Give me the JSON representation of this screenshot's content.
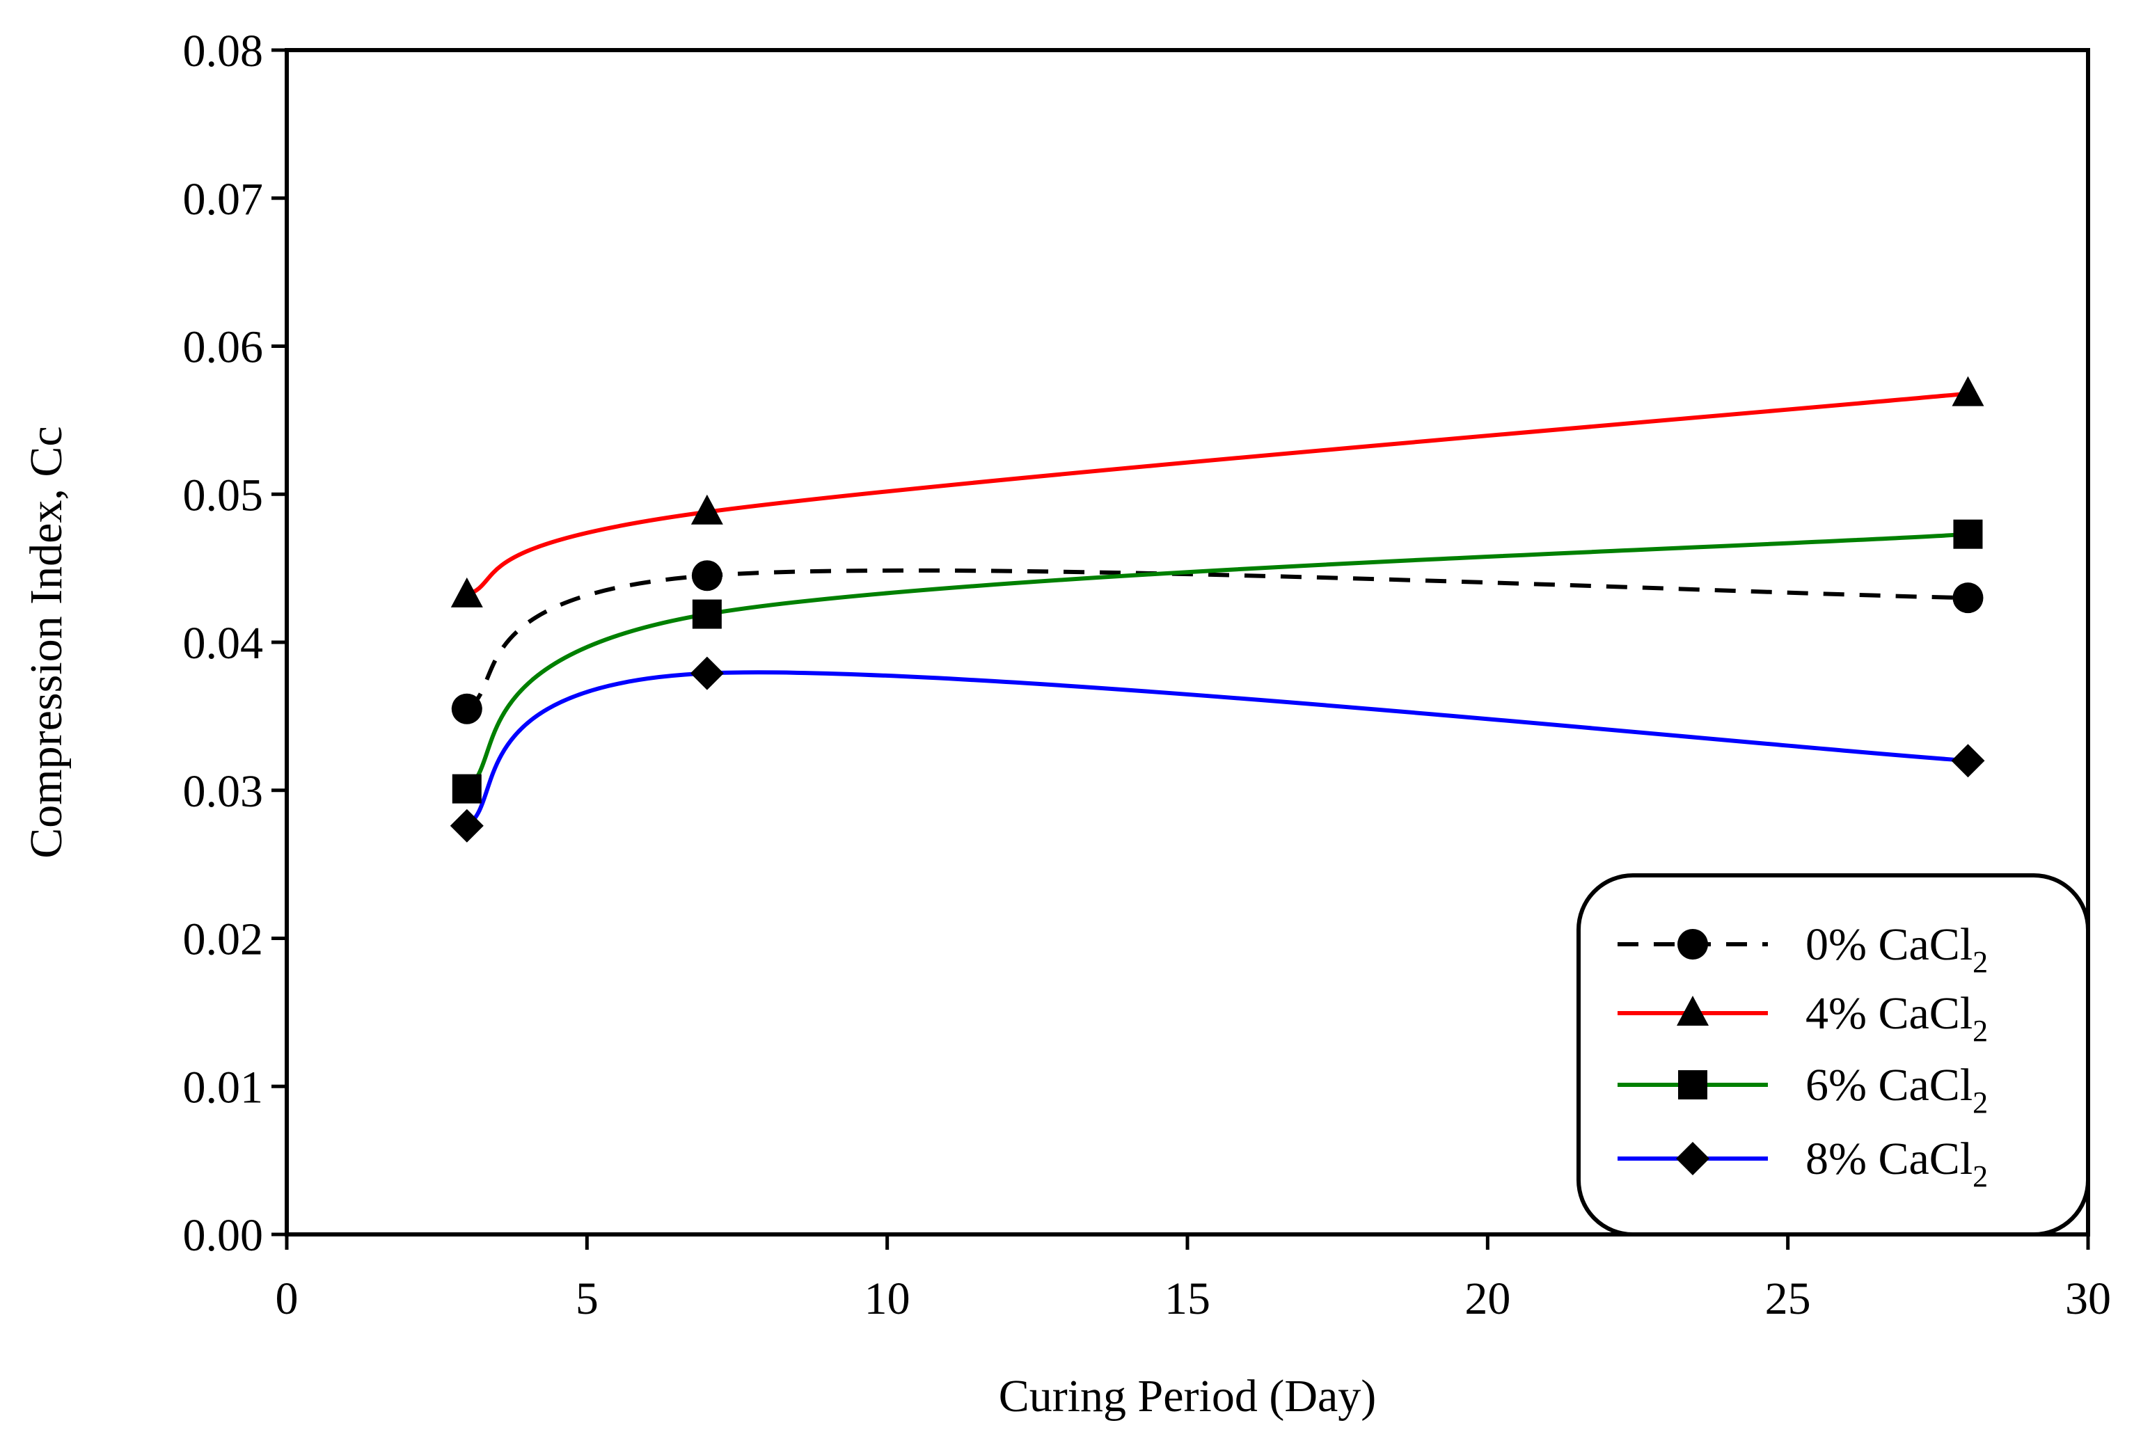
{
  "chart_data": {
    "type": "line",
    "title": "",
    "xlabel": "Curing Period (Day)",
    "ylabel": "Compression Index,  Cc",
    "xlim": [
      0,
      30
    ],
    "ylim": [
      0,
      0.08
    ],
    "xticks": [
      0,
      5,
      10,
      15,
      20,
      25,
      30
    ],
    "yticks": [
      0,
      0.01,
      0.02,
      0.03,
      0.04,
      0.05,
      0.06,
      0.07,
      0.08
    ],
    "xtick_labels": [
      "0",
      "5",
      "10",
      "15",
      "20",
      "25",
      "30"
    ],
    "ytick_labels": [
      "0.00",
      "0.01",
      "0.02",
      "0.03",
      "0.04",
      "0.05",
      "0.06",
      "0.07",
      "0.08"
    ],
    "grid": false,
    "legend_position": "bottom-right",
    "x": [
      3,
      7,
      28
    ],
    "series": [
      {
        "name": "0% CaCl2",
        "label_main": "0% CaCl",
        "label_sub": "2",
        "values": [
          0.0355,
          0.0445,
          0.043
        ],
        "color": "#000000",
        "dashed": true,
        "marker": "circle"
      },
      {
        "name": "4% CaCl2",
        "label_main": "4% CaCl",
        "label_sub": "2",
        "values": [
          0.0432,
          0.0488,
          0.0568
        ],
        "color": "#ff0000",
        "dashed": false,
        "marker": "triangle"
      },
      {
        "name": "6% CaCl2",
        "label_main": "6% CaCl",
        "label_sub": "2",
        "values": [
          0.0301,
          0.0419,
          0.0473
        ],
        "color": "#008000",
        "dashed": false,
        "marker": "square"
      },
      {
        "name": "8% CaCl2",
        "label_main": "8% CaCl",
        "label_sub": "2",
        "values": [
          0.0276,
          0.0379,
          0.032
        ],
        "color": "#0000ff",
        "dashed": false,
        "marker": "diamond"
      }
    ]
  }
}
